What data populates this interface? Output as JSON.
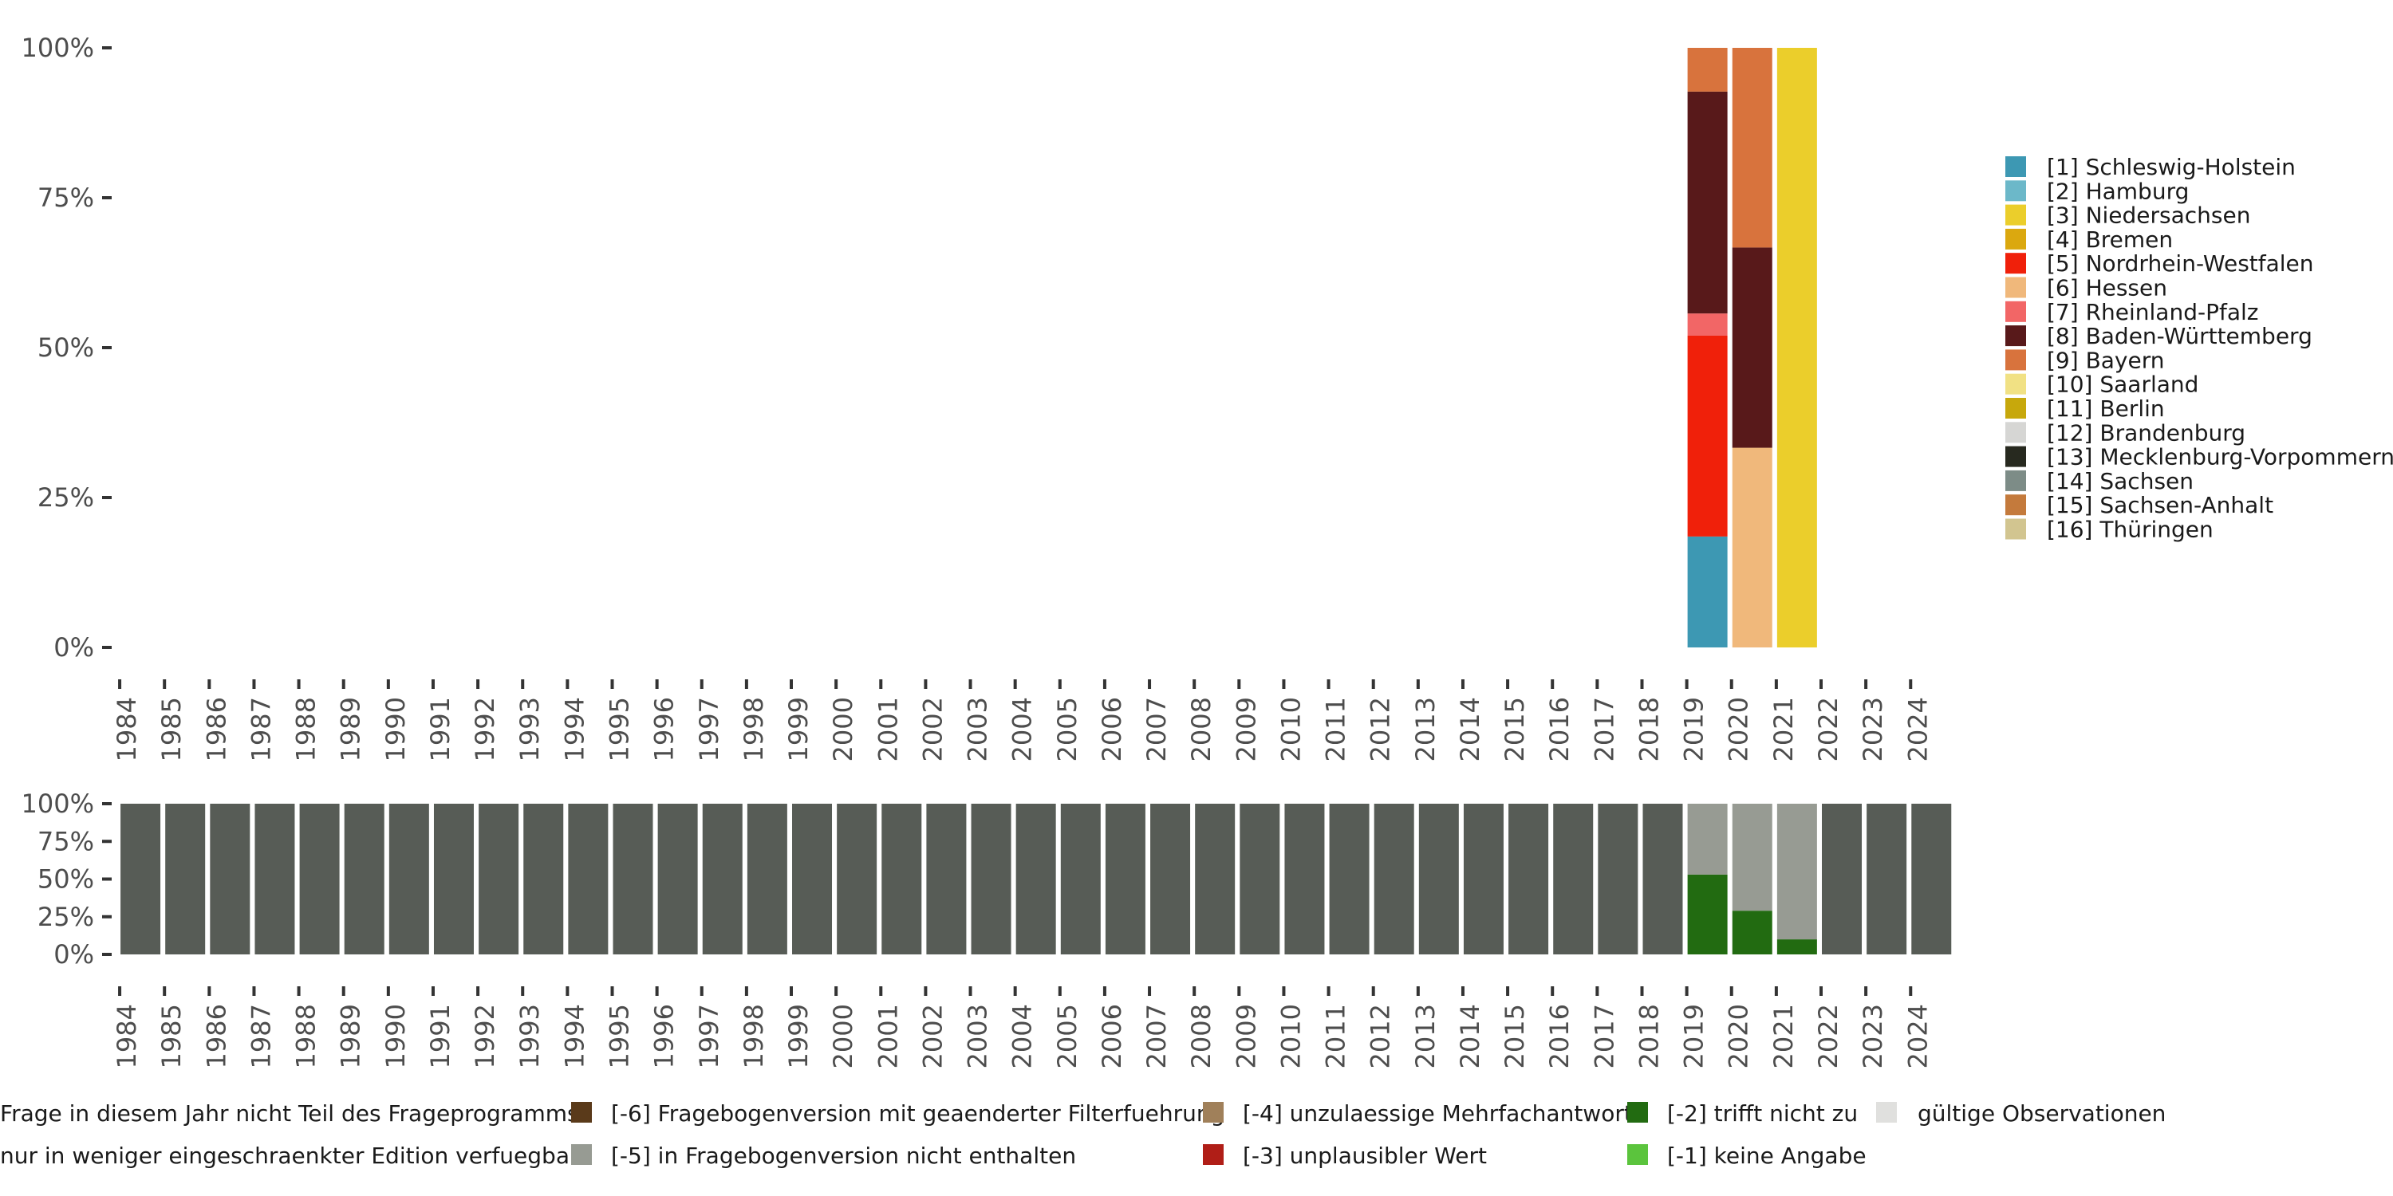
{
  "chart_data": [
    {
      "type": "bar",
      "stacked": true,
      "name": "top-panel",
      "categories": [
        "1984",
        "1985",
        "1986",
        "1987",
        "1988",
        "1989",
        "1990",
        "1991",
        "1992",
        "1993",
        "1994",
        "1995",
        "1996",
        "1997",
        "1998",
        "1999",
        "2000",
        "2001",
        "2002",
        "2003",
        "2004",
        "2005",
        "2006",
        "2007",
        "2008",
        "2009",
        "2010",
        "2011",
        "2012",
        "2013",
        "2014",
        "2015",
        "2016",
        "2017",
        "2018",
        "2019",
        "2020",
        "2021",
        "2022",
        "2023",
        "2024"
      ],
      "y_ticks": [
        "0%",
        "25%",
        "50%",
        "75%",
        "100%"
      ],
      "ylim": [
        0,
        100
      ],
      "series": [
        {
          "name": "[1] Schleswig-Holstein",
          "color": "#3d98b3",
          "values": {
            "2019": 18.5
          }
        },
        {
          "name": "[2] Hamburg",
          "color": "#6cb8c9",
          "values": {}
        },
        {
          "name": "[3] Niedersachsen",
          "color": "#ebce2b",
          "values": {
            "2021": 100
          }
        },
        {
          "name": "[4] Bremen",
          "color": "#dba80f",
          "values": {}
        },
        {
          "name": "[5] Nordrhein-Westfalen",
          "color": "#f0200a",
          "values": {
            "2019": 33.5
          }
        },
        {
          "name": "[6] Hessen",
          "color": "#f0b87b",
          "values": {
            "2020": 33.3
          }
        },
        {
          "name": "[7] Rheinland-Pfalz",
          "color": "#f26666",
          "values": {
            "2019": 3.7
          }
        },
        {
          "name": "[8] Baden-Württemberg",
          "color": "#58191a",
          "values": {
            "2019": 37.0,
            "2020": 33.4
          }
        },
        {
          "name": "[9] Bayern",
          "color": "#d8733d",
          "values": {
            "2019": 7.3,
            "2020": 33.3
          }
        },
        {
          "name": "[10] Saarland",
          "color": "#f1e184",
          "values": {}
        },
        {
          "name": "[11] Berlin",
          "color": "#c7a80c",
          "values": {}
        },
        {
          "name": "[12] Brandenburg",
          "color": "#d6d6d4",
          "values": {}
        },
        {
          "name": "[13] Mecklenburg-Vorpommern",
          "color": "#27291f",
          "values": {}
        },
        {
          "name": "[14] Sachsen",
          "color": "#7d8c87",
          "values": {}
        },
        {
          "name": "[15] Sachsen-Anhalt",
          "color": "#c47a3c",
          "values": {}
        },
        {
          "name": "[16] Thüringen",
          "color": "#d2c590",
          "values": {}
        }
      ]
    },
    {
      "type": "bar",
      "stacked": true,
      "name": "bottom-panel",
      "categories": [
        "1984",
        "1985",
        "1986",
        "1987",
        "1988",
        "1989",
        "1990",
        "1991",
        "1992",
        "1993",
        "1994",
        "1995",
        "1996",
        "1997",
        "1998",
        "1999",
        "2000",
        "2001",
        "2002",
        "2003",
        "2004",
        "2005",
        "2006",
        "2007",
        "2008",
        "2009",
        "2010",
        "2011",
        "2012",
        "2013",
        "2014",
        "2015",
        "2016",
        "2017",
        "2018",
        "2019",
        "2020",
        "2021",
        "2022",
        "2023",
        "2024"
      ],
      "y_ticks": [
        "0%",
        "25%",
        "50%",
        "75%",
        "100%"
      ],
      "ylim": [
        0,
        100
      ],
      "series": [
        {
          "name": "[-2] trifft nicht zu",
          "color": "#226b11",
          "values": {
            "2019": 53,
            "2020": 29,
            "2021": 10
          }
        },
        {
          "name": "nur in weniger eingeschraenkter Edition verfuegbar",
          "color": "#979b93",
          "values": {
            "2019": 47,
            "2020": 71,
            "2021": 90
          }
        },
        {
          "name": "Frage in diesem Jahr nicht Teil des Frageprogramms",
          "color": "#575c56",
          "values": {
            "1984": 100,
            "1985": 100,
            "1986": 100,
            "1987": 100,
            "1988": 100,
            "1989": 100,
            "1990": 100,
            "1991": 100,
            "1992": 100,
            "1993": 100,
            "1994": 100,
            "1995": 100,
            "1996": 100,
            "1997": 100,
            "1998": 100,
            "1999": 100,
            "2000": 100,
            "2001": 100,
            "2002": 100,
            "2003": 100,
            "2004": 100,
            "2005": 100,
            "2006": 100,
            "2007": 100,
            "2008": 100,
            "2009": 100,
            "2010": 100,
            "2011": 100,
            "2012": 100,
            "2013": 100,
            "2014": 100,
            "2015": 100,
            "2016": 100,
            "2017": 100,
            "2018": 100,
            "2022": 100,
            "2023": 100,
            "2024": 100
          }
        }
      ]
    }
  ],
  "bottom_legend": [
    {
      "label": "Frage in diesem Jahr nicht Teil des Frageprogramms",
      "color": "#575c56"
    },
    {
      "label": "[-6] Fragebogenversion mit geaenderter Filterfuehrung",
      "color": "#5a3a1a"
    },
    {
      "label": "[-4] unzulaessige Mehrfachantwort",
      "color": "#a0805a"
    },
    {
      "label": "[-2] trifft nicht zu",
      "color": "#226b11"
    },
    {
      "label": "gültige Observationen",
      "color": "#e0e0de"
    },
    {
      "label": "nur in weniger eingeschraenkter Edition verfuegbar",
      "color": "#979b93"
    },
    {
      "label": "[-5] in Fragebogenversion nicht enthalten",
      "color": "#979b93"
    },
    {
      "label": "[-3] unplausibler Wert",
      "color": "#b01e17"
    },
    {
      "label": "[-1] keine Angabe",
      "color": "#5bc43d"
    }
  ]
}
